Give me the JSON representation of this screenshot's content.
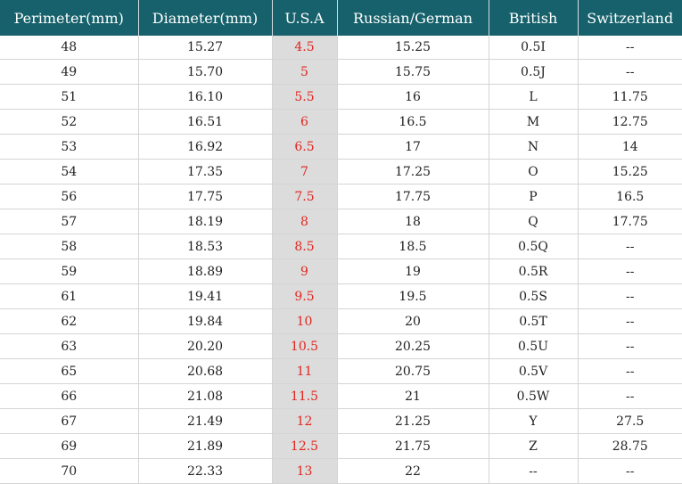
{
  "headers": [
    "Perimeter(mm)",
    "Diameter(mm)",
    "U.S.A",
    "Russian/German",
    "British",
    "Switzerland"
  ],
  "rows": [
    [
      "48",
      "15.27",
      "4.5",
      "15.25",
      "0.5I",
      "--"
    ],
    [
      "49",
      "15.70",
      "5",
      "15.75",
      "0.5J",
      "--"
    ],
    [
      "51",
      "16.10",
      "5.5",
      "16",
      "L",
      "11.75"
    ],
    [
      "52",
      "16.51",
      "6",
      "16.5",
      "M",
      "12.75"
    ],
    [
      "53",
      "16.92",
      "6.5",
      "17",
      "N",
      "14"
    ],
    [
      "54",
      "17.35",
      "7",
      "17.25",
      "O",
      "15.25"
    ],
    [
      "56",
      "17.75",
      "7.5",
      "17.75",
      "P",
      "16.5"
    ],
    [
      "57",
      "18.19",
      "8",
      "18",
      "Q",
      "17.75"
    ],
    [
      "58",
      "18.53",
      "8.5",
      "18.5",
      "0.5Q",
      "--"
    ],
    [
      "59",
      "18.89",
      "9",
      "19",
      "0.5R",
      "--"
    ],
    [
      "61",
      "19.41",
      "9.5",
      "19.5",
      "0.5S",
      "--"
    ],
    [
      "62",
      "19.84",
      "10",
      "20",
      "0.5T",
      "--"
    ],
    [
      "63",
      "20.20",
      "10.5",
      "20.25",
      "0.5U",
      "--"
    ],
    [
      "65",
      "20.68",
      "11",
      "20.75",
      "0.5V",
      "--"
    ],
    [
      "66",
      "21.08",
      "11.5",
      "21",
      "0.5W",
      "--"
    ],
    [
      "67",
      "21.49",
      "12",
      "21.25",
      "Y",
      "27.5"
    ],
    [
      "69",
      "21.89",
      "12.5",
      "21.75",
      "Z",
      "28.75"
    ],
    [
      "70",
      "22.33",
      "13",
      "22",
      "--",
      "--"
    ]
  ],
  "colors": {
    "header_bg": "#16616b",
    "header_text": "#ffffff",
    "usa_column_bg": "#dcdcdc",
    "usa_column_text": "#e0261f"
  }
}
